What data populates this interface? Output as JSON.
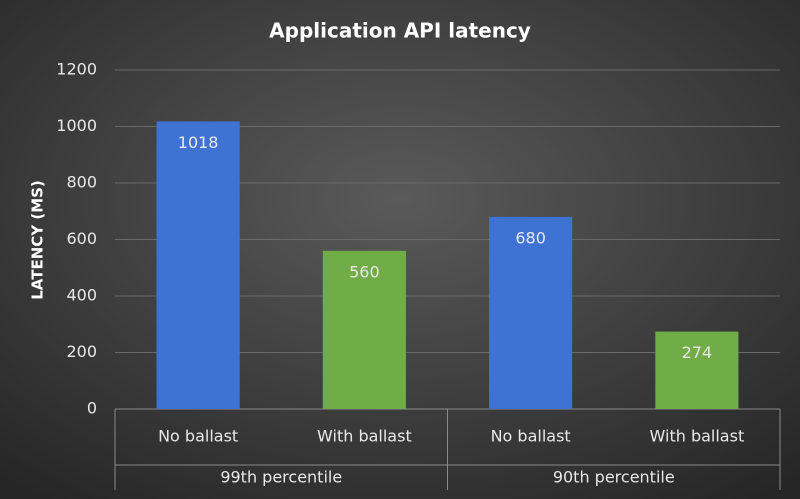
{
  "chart_data": {
    "type": "bar",
    "title": "Application API latency",
    "y_label": "LATENCY (MS)",
    "groups": [
      {
        "name": "99th percentile",
        "categories": [
          "No ballast",
          "With ballast"
        ],
        "values": [
          1018,
          560
        ],
        "colors": [
          "#3f73d3",
          "#70ad47"
        ]
      },
      {
        "name": "90th percentile",
        "categories": [
          "No ballast",
          "With ballast"
        ],
        "values": [
          680,
          274
        ],
        "colors": [
          "#3f73d3",
          "#70ad47"
        ]
      }
    ],
    "ylim": [
      0,
      1200
    ],
    "yticks": [
      0,
      200,
      400,
      600,
      800,
      1000,
      1200
    ],
    "grid": true
  }
}
